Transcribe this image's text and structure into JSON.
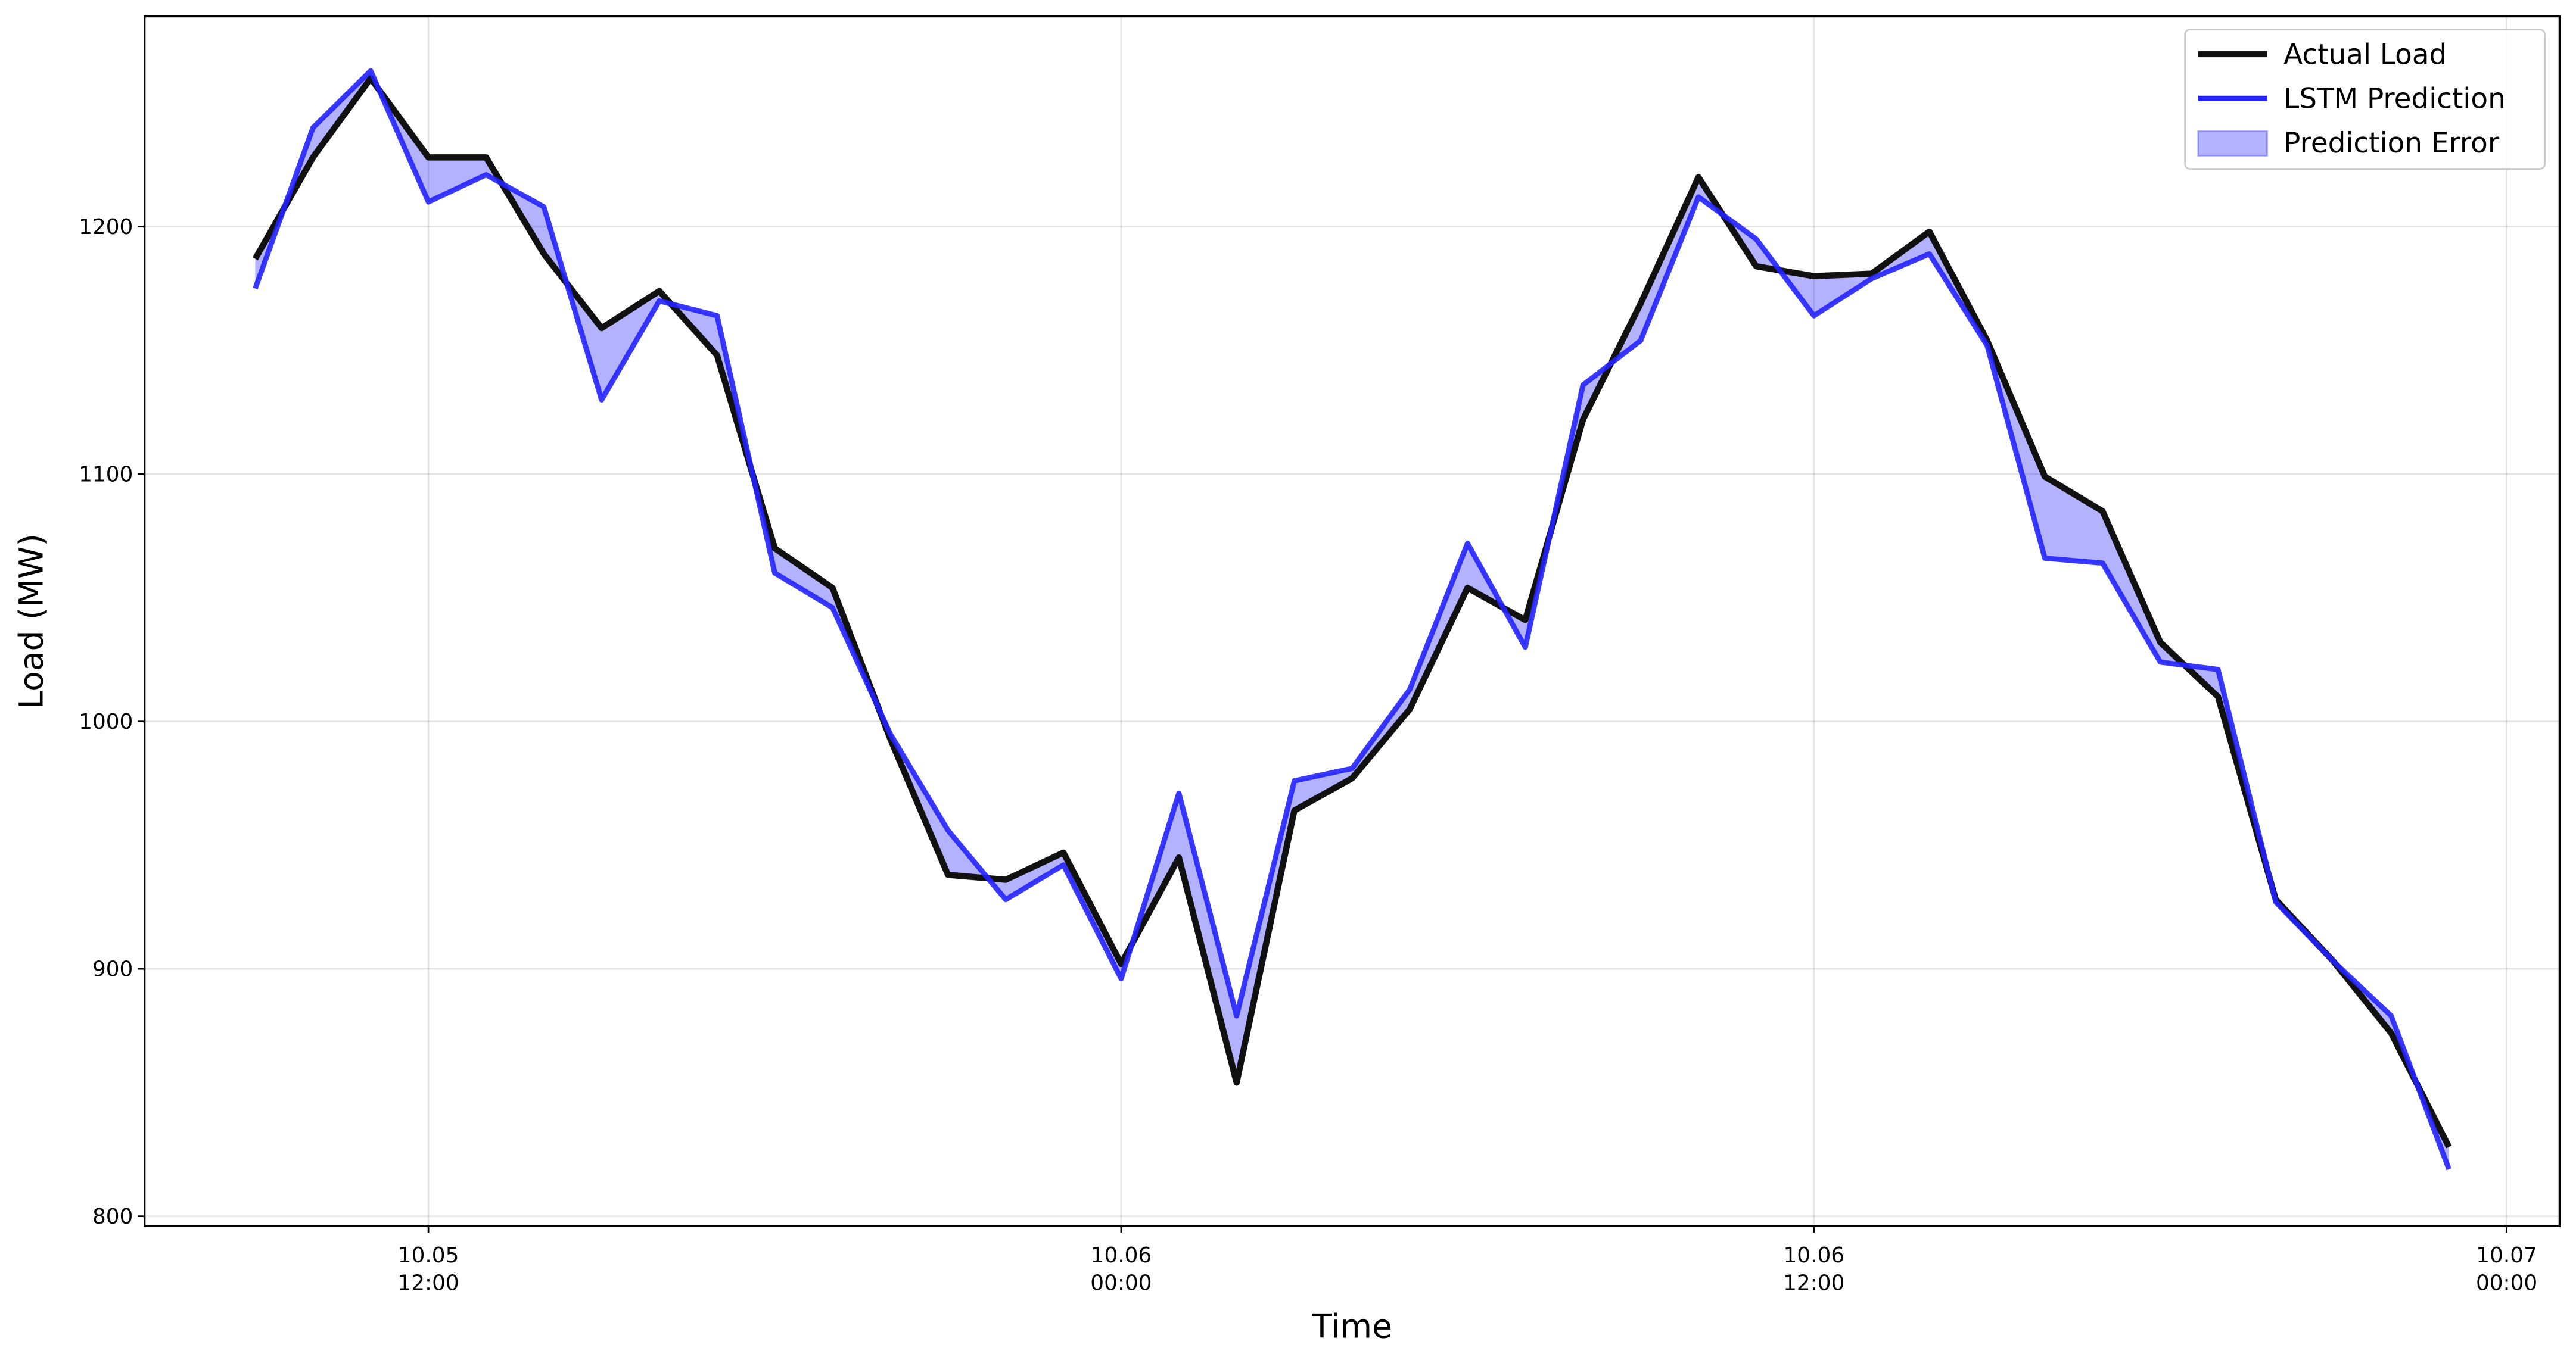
{
  "chart_data": {
    "type": "line",
    "xlabel": "Time",
    "ylabel": "Load (MW)",
    "x": [
      "10-05 09:00",
      "10-05 10:00",
      "10-05 11:00",
      "10-05 12:00",
      "10-05 13:00",
      "10-05 14:00",
      "10-05 15:00",
      "10-05 16:00",
      "10-05 17:00",
      "10-05 18:00",
      "10-05 19:00",
      "10-05 20:00",
      "10-05 21:00",
      "10-05 22:00",
      "10-05 23:00",
      "10-06 00:00",
      "10-06 01:00",
      "10-06 02:00",
      "10-06 03:00",
      "10-06 04:00",
      "10-06 05:00",
      "10-06 06:00",
      "10-06 07:00",
      "10-06 08:00",
      "10-06 09:00",
      "10-06 10:00",
      "10-06 11:00",
      "10-06 12:00",
      "10-06 13:00",
      "10-06 14:00",
      "10-06 15:00",
      "10-06 16:00",
      "10-06 17:00",
      "10-06 18:00",
      "10-06 19:00",
      "10-06 20:00",
      "10-06 21:00",
      "10-06 22:00",
      "10-06 23:00"
    ],
    "series": [
      {
        "name": "Actual Load",
        "color": "#111111",
        "values": [
          1187,
          1228,
          1260,
          1228,
          1228,
          1189,
          1159,
          1174,
          1148,
          1070,
          1054,
          993,
          938,
          936,
          947,
          902,
          945,
          854,
          964,
          977,
          1005,
          1054,
          1041,
          1122,
          1169,
          1220,
          1184,
          1180,
          1181,
          1198,
          1154,
          1099,
          1085,
          1032,
          1010,
          928,
          903,
          874,
          828
        ]
      },
      {
        "name": "LSTM Prediction",
        "color": "#2222ff",
        "values": [
          1175,
          1240,
          1263,
          1210,
          1221,
          1208,
          1130,
          1170,
          1164,
          1060,
          1046,
          995,
          956,
          928,
          942,
          896,
          971,
          881,
          976,
          981,
          1013,
          1072,
          1030,
          1136,
          1154,
          1212,
          1195,
          1164,
          1179,
          1189,
          1152,
          1066,
          1064,
          1024,
          1021,
          927,
          903,
          881,
          819
        ]
      }
    ],
    "fill": {
      "name": "Prediction Error",
      "color": "#0000ff"
    },
    "xlim": [
      "10-05 07:05",
      "10-07 00:55"
    ],
    "xticks": [
      {
        "value": "10-05 12:00",
        "label": "10.05\n12:00"
      },
      {
        "value": "10-06 00:00",
        "label": "10.06\n00:00"
      },
      {
        "value": "10-06 12:00",
        "label": "10.06\n12:00"
      },
      {
        "value": "10-07 00:00",
        "label": "10.07\n00:00"
      }
    ],
    "ylim": [
      796,
      1285
    ],
    "yticks": [
      800,
      900,
      1000,
      1100,
      1200
    ],
    "grid": true,
    "legend": "upper right"
  }
}
